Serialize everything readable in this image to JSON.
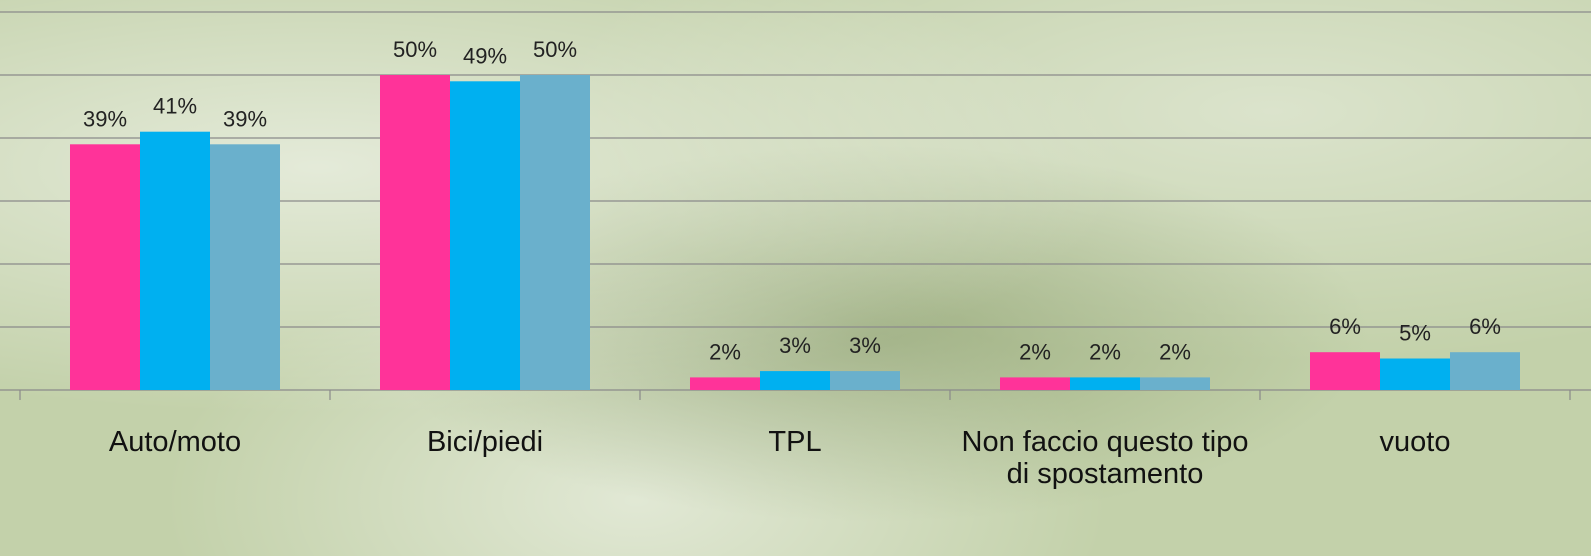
{
  "chart_data": {
    "type": "bar",
    "categories": [
      "Auto/moto",
      "Bici/piedi",
      "TPL",
      "Non faccio questo tipo di spostamento",
      "vuoto"
    ],
    "series": [
      {
        "color": "#ff3399",
        "values": [
          39,
          50,
          2,
          2,
          6
        ],
        "value_labels": [
          "39%",
          "50%",
          "2%",
          "2%",
          "6%"
        ]
      },
      {
        "color": "#00b0f0",
        "values": [
          41,
          49,
          3,
          2,
          5
        ],
        "value_labels": [
          "41%",
          "49%",
          "3%",
          "2%",
          "5%"
        ]
      },
      {
        "color": "#6ab0cc",
        "values": [
          39,
          50,
          3,
          2,
          6
        ],
        "value_labels": [
          "39%",
          "50%",
          "3%",
          "2%",
          "6%"
        ]
      }
    ],
    "ylim": [
      0,
      60
    ],
    "yticks": [
      0,
      10,
      20,
      30,
      40,
      50,
      60
    ],
    "grid": true
  }
}
